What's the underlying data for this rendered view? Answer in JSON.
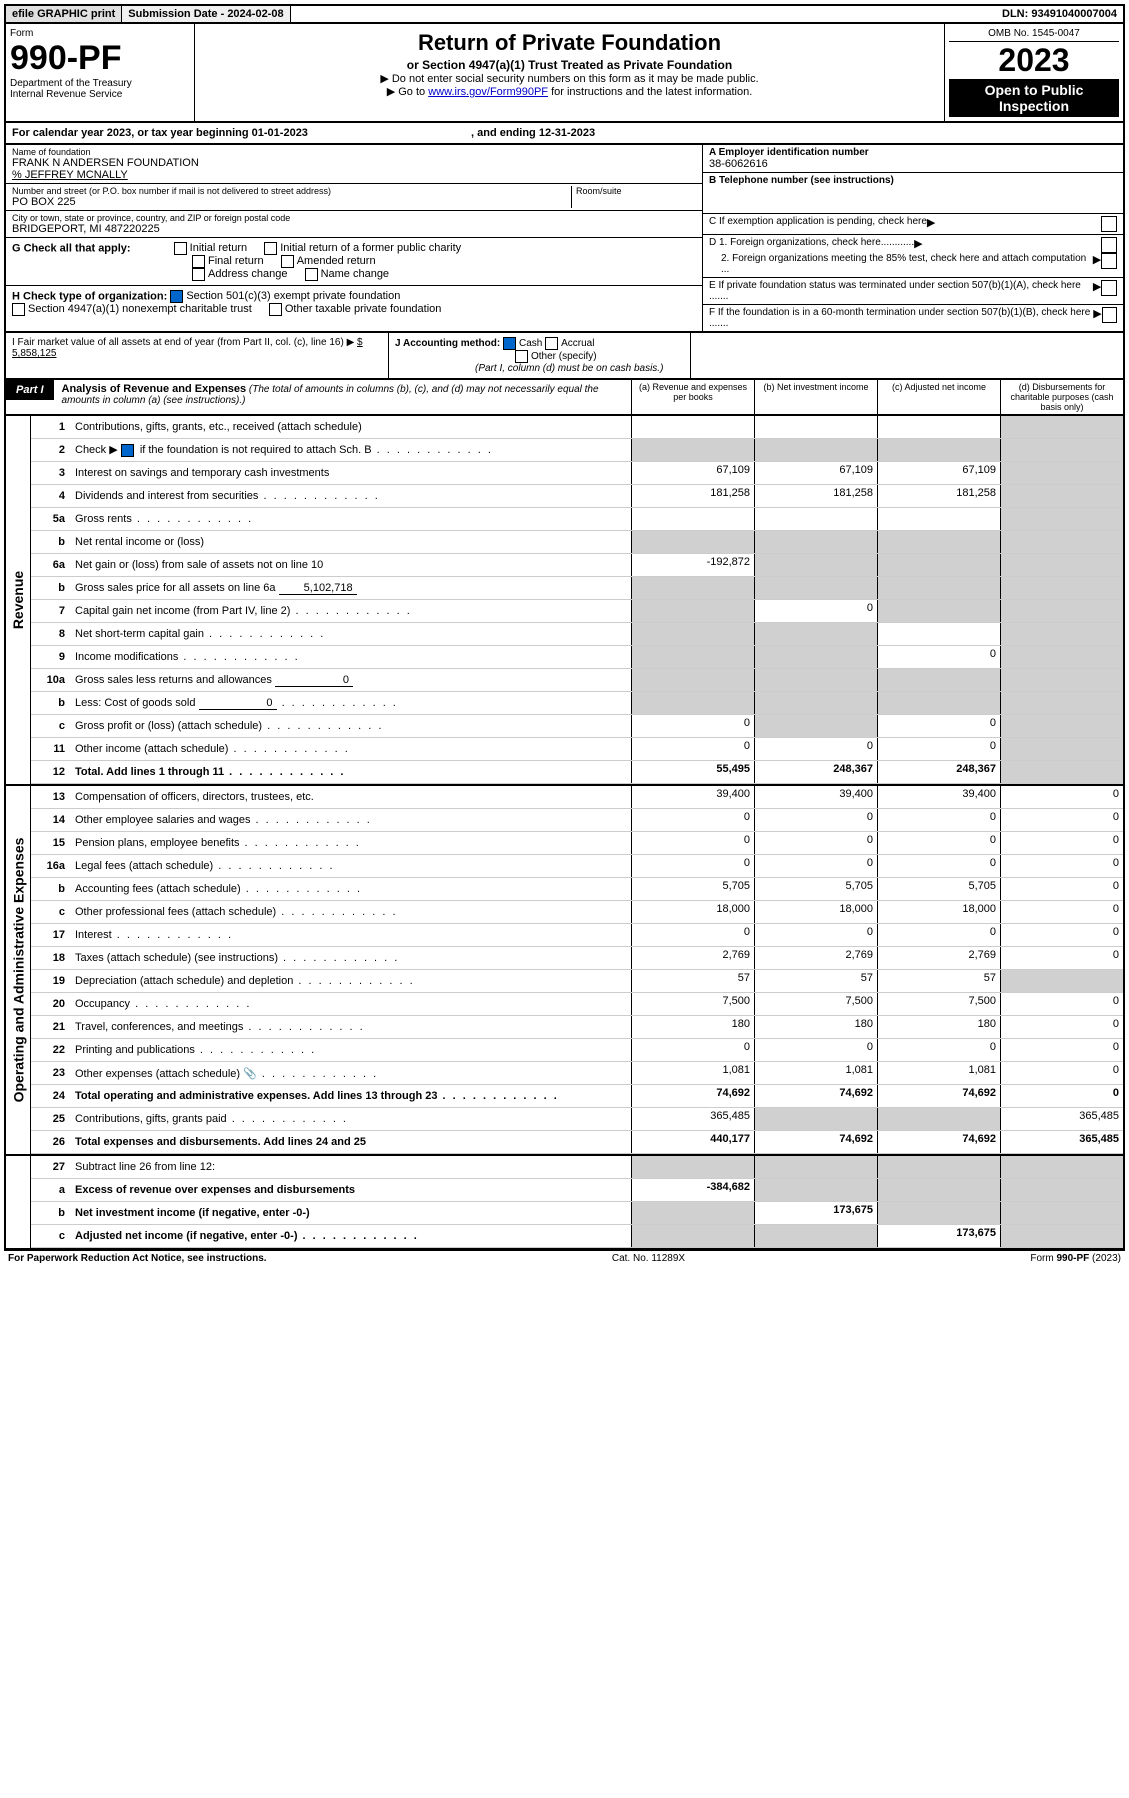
{
  "topbar": {
    "efile": "efile GRAPHIC print",
    "submission": "Submission Date - 2024-02-08",
    "dln": "DLN: 93491040007004"
  },
  "header": {
    "form_label": "Form",
    "form_number": "990-PF",
    "dept": "Department of the Treasury\nInternal Revenue Service",
    "title": "Return of Private Foundation",
    "subtitle": "or Section 4947(a)(1) Trust Treated as Private Foundation",
    "note1": "▶ Do not enter social security numbers on this form as it may be made public.",
    "note2_pre": "▶ Go to ",
    "note2_link": "www.irs.gov/Form990PF",
    "note2_post": " for instructions and the latest information.",
    "omb": "OMB No. 1545-0047",
    "year": "2023",
    "open": "Open to Public Inspection"
  },
  "yearline": {
    "pre": "For calendar year 2023, or tax year beginning ",
    "begin": "01-01-2023",
    "mid": " , and ending ",
    "end": "12-31-2023"
  },
  "info": {
    "name_label": "Name of foundation",
    "name": "FRANK N ANDERSEN FOUNDATION",
    "care_of": "% JEFFREY MCNALLY",
    "street_label": "Number and street (or P.O. box number if mail is not delivered to street address)",
    "street": "PO BOX 225",
    "room_label": "Room/suite",
    "city_label": "City or town, state or province, country, and ZIP or foreign postal code",
    "city": "BRIDGEPORT, MI  487220225",
    "a_label": "A Employer identification number",
    "a_val": "38-6062616",
    "b_label": "B Telephone number (see instructions)",
    "c_label": "C If exemption application is pending, check here",
    "d1_label": "D 1. Foreign organizations, check here............",
    "d2_label": "2. Foreign organizations meeting the 85% test, check here and attach computation ...",
    "e_label": "E  If private foundation status was terminated under section 507(b)(1)(A), check here .......",
    "f_label": "F  If the foundation is in a 60-month termination under section 507(b)(1)(B), check here ......."
  },
  "g": {
    "label": "G Check all that apply:",
    "opts": [
      "Initial return",
      "Initial return of a former public charity",
      "Final return",
      "Amended return",
      "Address change",
      "Name change"
    ]
  },
  "h": {
    "label": "H Check type of organization:",
    "opt1": "Section 501(c)(3) exempt private foundation",
    "opt2": "Section 4947(a)(1) nonexempt charitable trust",
    "opt3": "Other taxable private foundation"
  },
  "i": {
    "label": "I Fair market value of all assets at end of year (from Part II, col. (c), line 16) ▶",
    "value": "$  5,858,125"
  },
  "j": {
    "label": "J Accounting method:",
    "cash": "Cash",
    "accrual": "Accrual",
    "other": "Other (specify)",
    "note": "(Part I, column (d) must be on cash basis.)"
  },
  "part1": {
    "label": "Part I",
    "title": "Analysis of Revenue and Expenses",
    "desc": " (The total of amounts in columns (b), (c), and (d) may not necessarily equal the amounts in column (a) (see instructions).)",
    "col_a": "(a)   Revenue and expenses per books",
    "col_b": "(b)  Net investment income",
    "col_c": "(c)  Adjusted net income",
    "col_d": "(d)  Disbursements for charitable purposes (cash basis only)"
  },
  "side_labels": {
    "revenue": "Revenue",
    "expenses": "Operating and Administrative Expenses"
  },
  "rows": {
    "r1": {
      "n": "1",
      "d": "Contributions, gifts, grants, etc., received (attach schedule)"
    },
    "r2": {
      "n": "2",
      "d": "Check ▶",
      "d2": " if the foundation is not required to attach Sch. B"
    },
    "r3": {
      "n": "3",
      "d": "Interest on savings and temporary cash investments",
      "a": "67,109",
      "b": "67,109",
      "c": "67,109"
    },
    "r4": {
      "n": "4",
      "d": "Dividends and interest from securities",
      "a": "181,258",
      "b": "181,258",
      "c": "181,258"
    },
    "r5a": {
      "n": "5a",
      "d": "Gross rents"
    },
    "r5b": {
      "n": "b",
      "d": "Net rental income or (loss)"
    },
    "r6a": {
      "n": "6a",
      "d": "Net gain or (loss) from sale of assets not on line 10",
      "a": "-192,872"
    },
    "r6b": {
      "n": "b",
      "d": "Gross sales price for all assets on line 6a",
      "v": "5,102,718"
    },
    "r7": {
      "n": "7",
      "d": "Capital gain net income (from Part IV, line 2)",
      "b": "0"
    },
    "r8": {
      "n": "8",
      "d": "Net short-term capital gain"
    },
    "r9": {
      "n": "9",
      "d": "Income modifications",
      "c": "0"
    },
    "r10a": {
      "n": "10a",
      "d": "Gross sales less returns and allowances",
      "v": "0"
    },
    "r10b": {
      "n": "b",
      "d": "Less: Cost of goods sold",
      "v": "0"
    },
    "r10c": {
      "n": "c",
      "d": "Gross profit or (loss) (attach schedule)",
      "a": "0",
      "c": "0"
    },
    "r11": {
      "n": "11",
      "d": "Other income (attach schedule)",
      "a": "0",
      "b": "0",
      "c": "0"
    },
    "r12": {
      "n": "12",
      "d": "Total. Add lines 1 through 11",
      "a": "55,495",
      "b": "248,367",
      "c": "248,367"
    },
    "r13": {
      "n": "13",
      "d": "Compensation of officers, directors, trustees, etc.",
      "a": "39,400",
      "b": "39,400",
      "c": "39,400",
      "dd": "0"
    },
    "r14": {
      "n": "14",
      "d": "Other employee salaries and wages",
      "a": "0",
      "b": "0",
      "c": "0",
      "dd": "0"
    },
    "r15": {
      "n": "15",
      "d": "Pension plans, employee benefits",
      "a": "0",
      "b": "0",
      "c": "0",
      "dd": "0"
    },
    "r16a": {
      "n": "16a",
      "d": "Legal fees (attach schedule)",
      "a": "0",
      "b": "0",
      "c": "0",
      "dd": "0"
    },
    "r16b": {
      "n": "b",
      "d": "Accounting fees (attach schedule)",
      "a": "5,705",
      "b": "5,705",
      "c": "5,705",
      "dd": "0"
    },
    "r16c": {
      "n": "c",
      "d": "Other professional fees (attach schedule)",
      "a": "18,000",
      "b": "18,000",
      "c": "18,000",
      "dd": "0"
    },
    "r17": {
      "n": "17",
      "d": "Interest",
      "a": "0",
      "b": "0",
      "c": "0",
      "dd": "0"
    },
    "r18": {
      "n": "18",
      "d": "Taxes (attach schedule) (see instructions)",
      "a": "2,769",
      "b": "2,769",
      "c": "2,769",
      "dd": "0"
    },
    "r19": {
      "n": "19",
      "d": "Depreciation (attach schedule) and depletion",
      "a": "57",
      "b": "57",
      "c": "57"
    },
    "r20": {
      "n": "20",
      "d": "Occupancy",
      "a": "7,500",
      "b": "7,500",
      "c": "7,500",
      "dd": "0"
    },
    "r21": {
      "n": "21",
      "d": "Travel, conferences, and meetings",
      "a": "180",
      "b": "180",
      "c": "180",
      "dd": "0"
    },
    "r22": {
      "n": "22",
      "d": "Printing and publications",
      "a": "0",
      "b": "0",
      "c": "0",
      "dd": "0"
    },
    "r23": {
      "n": "23",
      "d": "Other expenses (attach schedule)",
      "a": "1,081",
      "b": "1,081",
      "c": "1,081",
      "dd": "0"
    },
    "r24": {
      "n": "24",
      "d": "Total operating and administrative expenses. Add lines 13 through 23",
      "a": "74,692",
      "b": "74,692",
      "c": "74,692",
      "dd": "0"
    },
    "r25": {
      "n": "25",
      "d": "Contributions, gifts, grants paid",
      "a": "365,485",
      "dd": "365,485"
    },
    "r26": {
      "n": "26",
      "d": "Total expenses and disbursements. Add lines 24 and 25",
      "a": "440,177",
      "b": "74,692",
      "c": "74,692",
      "dd": "365,485"
    },
    "r27": {
      "n": "27",
      "d": "Subtract line 26 from line 12:"
    },
    "r27a": {
      "n": "a",
      "d": "Excess of revenue over expenses and disbursements",
      "a": "-384,682"
    },
    "r27b": {
      "n": "b",
      "d": "Net investment income (if negative, enter -0-)",
      "b": "173,675"
    },
    "r27c": {
      "n": "c",
      "d": "Adjusted net income (if negative, enter -0-)",
      "c": "173,675"
    }
  },
  "footer": {
    "left": "For Paperwork Reduction Act Notice, see instructions.",
    "mid": "Cat. No. 11289X",
    "right": "Form 990-PF (2023)"
  }
}
